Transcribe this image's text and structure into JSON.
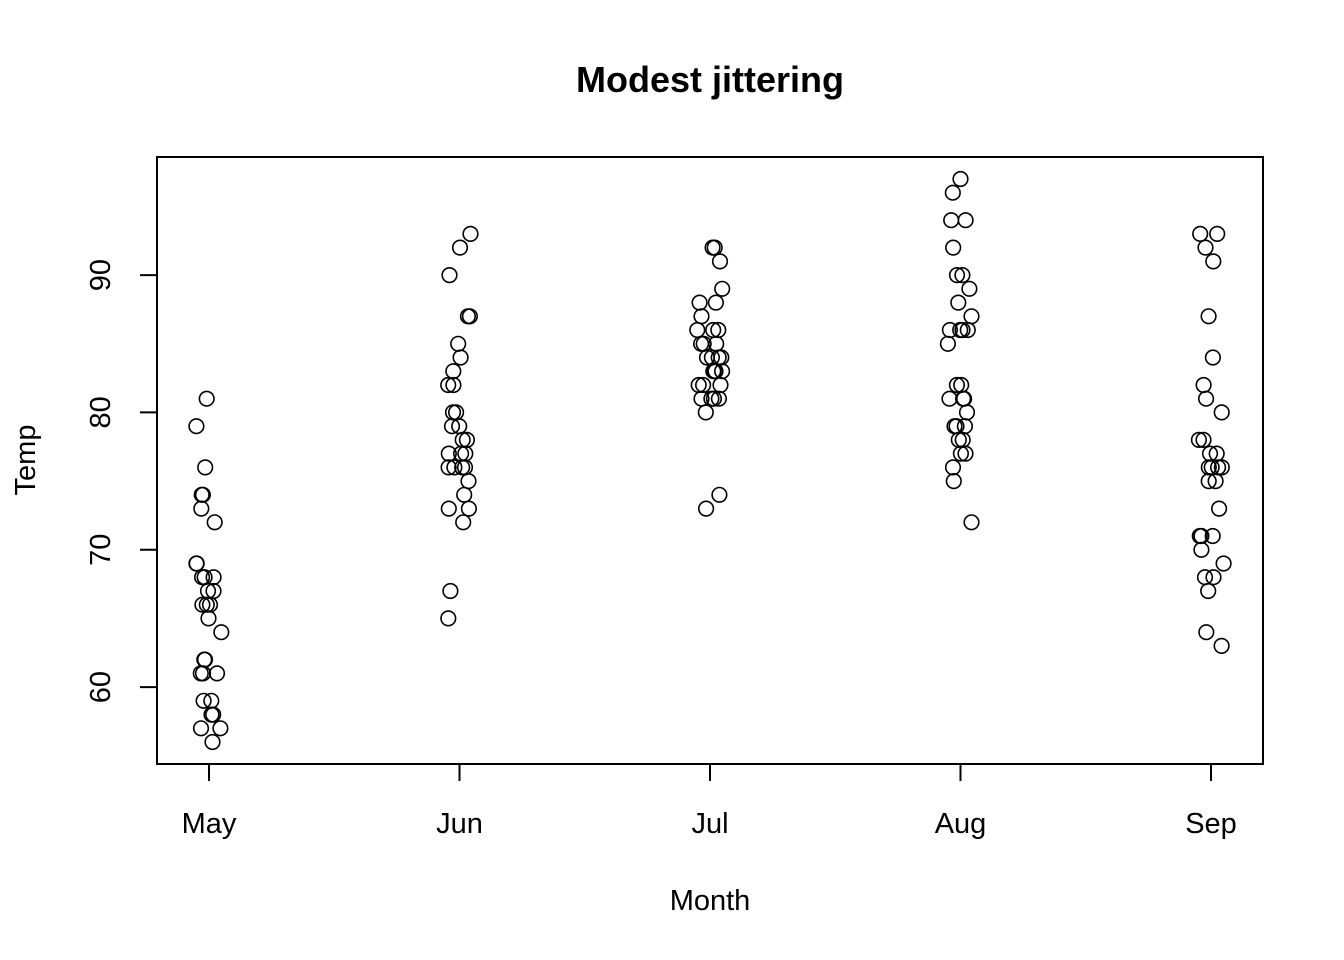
{
  "chart_data": {
    "type": "scatter",
    "title": "Modest jittering",
    "xlabel": "Month",
    "ylabel": "Temp",
    "categories": [
      "May",
      "Jun",
      "Jul",
      "Aug",
      "Sep"
    ],
    "yticks": [
      60,
      70,
      80,
      90
    ],
    "ylim": [
      54.4,
      98.6
    ],
    "grid": false,
    "marker": "open-circle",
    "color": "#000000",
    "points": [
      {
        "month": "May",
        "values": [
          81,
          79,
          76,
          74,
          74,
          73,
          72,
          69,
          69,
          68,
          68,
          68,
          67,
          67,
          66,
          66,
          66,
          65,
          64,
          62,
          62,
          61,
          61,
          61,
          59,
          59,
          58,
          58,
          57,
          57,
          56
        ]
      },
      {
        "month": "Jun",
        "values": [
          93,
          92,
          90,
          87,
          87,
          85,
          84,
          83,
          82,
          82,
          80,
          80,
          79,
          79,
          78,
          78,
          77,
          77,
          77,
          76,
          76,
          76,
          76,
          75,
          74,
          73,
          73,
          72,
          67,
          65
        ]
      },
      {
        "month": "Jul",
        "values": [
          92,
          92,
          91,
          89,
          88,
          88,
          87,
          86,
          86,
          86,
          85,
          85,
          85,
          84,
          84,
          84,
          83,
          83,
          83,
          82,
          82,
          82,
          81,
          81,
          81,
          81,
          80,
          74,
          73,
          84,
          83
        ]
      },
      {
        "month": "Aug",
        "values": [
          97,
          96,
          94,
          94,
          92,
          90,
          90,
          89,
          88,
          87,
          86,
          86,
          86,
          86,
          85,
          82,
          82,
          81,
          81,
          80,
          79,
          79,
          79,
          78,
          78,
          77,
          77,
          76,
          75,
          72,
          81
        ]
      },
      {
        "month": "Sep",
        "values": [
          93,
          93,
          92,
          91,
          87,
          84,
          82,
          81,
          80,
          78,
          78,
          77,
          77,
          76,
          76,
          76,
          75,
          75,
          73,
          71,
          71,
          71,
          70,
          69,
          68,
          68,
          67,
          64,
          63,
          76
        ]
      }
    ]
  }
}
